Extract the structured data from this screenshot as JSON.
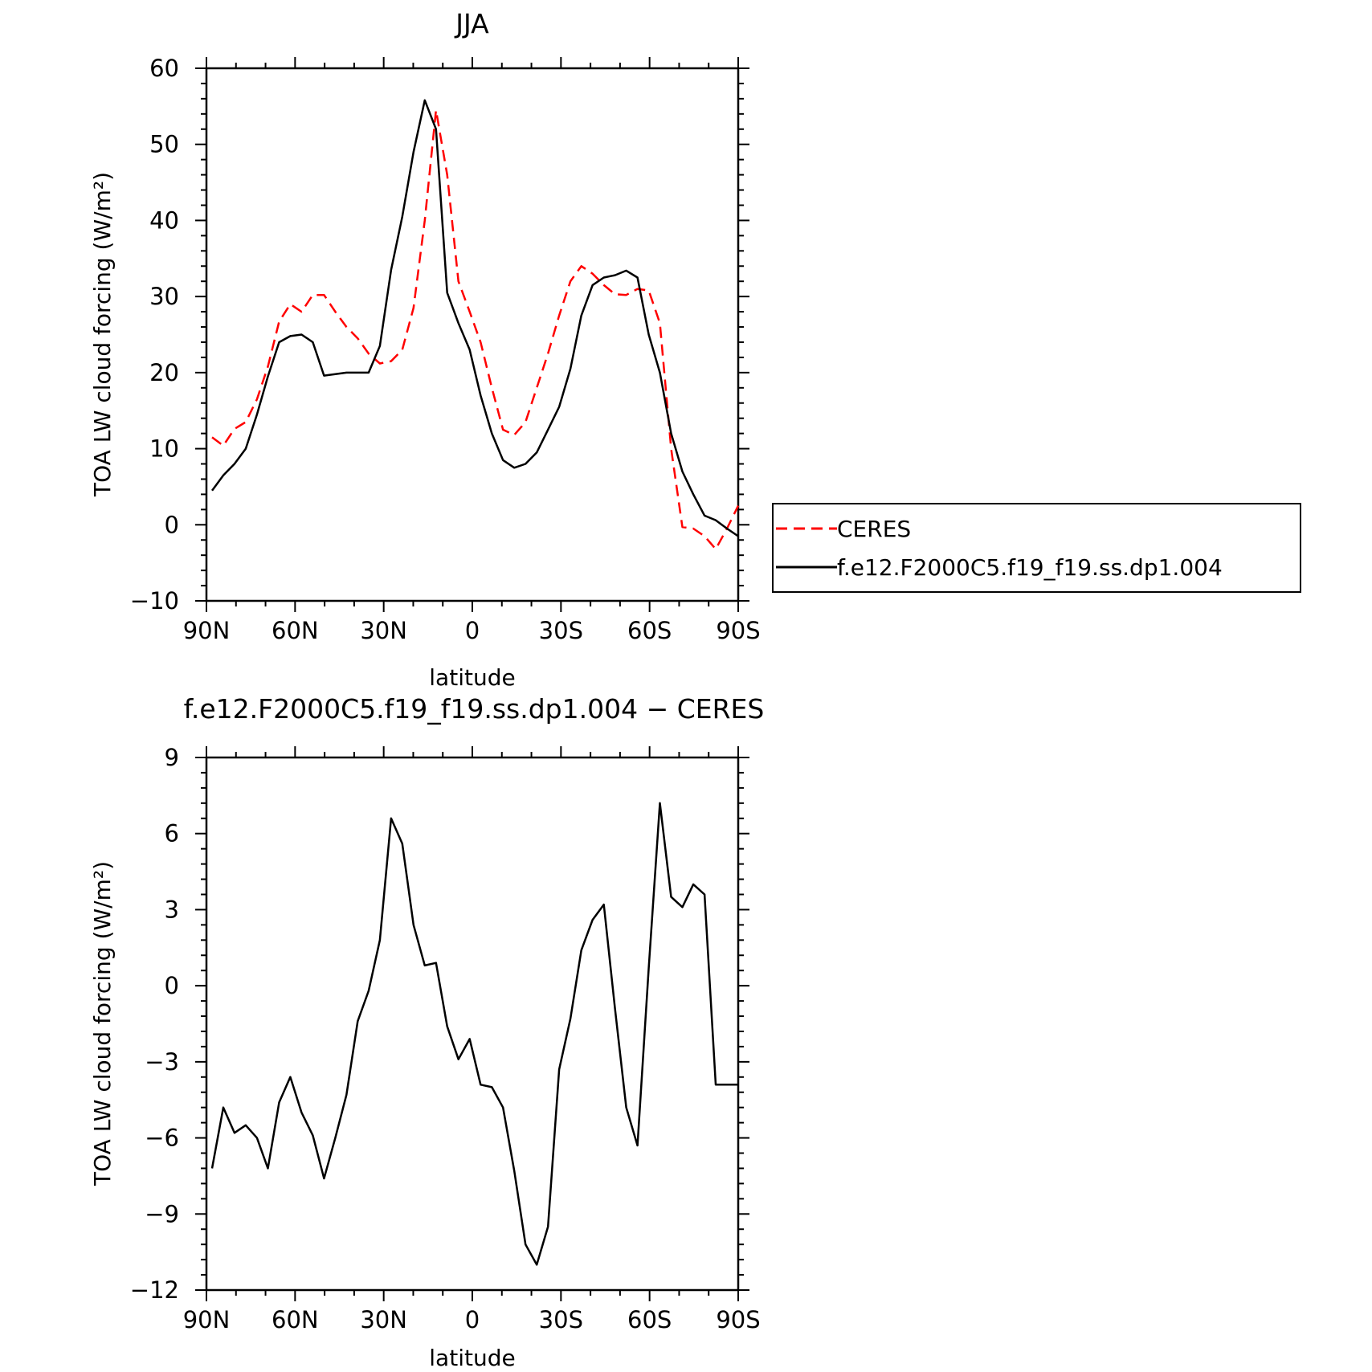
{
  "chart_data": [
    {
      "type": "line",
      "title": "JJA",
      "xlabel": "latitude",
      "ylabel": "TOA LW cloud forcing (W/m²)",
      "xlim": [
        90,
        -90
      ],
      "ylim": [
        -10,
        60
      ],
      "x_ticks": [
        90,
        60,
        30,
        0,
        -30,
        -60,
        -90
      ],
      "x_tick_labels": [
        "90N",
        "60N",
        "30N",
        "0",
        "30S",
        "60S",
        "90S"
      ],
      "y_ticks": [
        -10,
        0,
        10,
        20,
        30,
        40,
        50,
        60
      ],
      "y_tick_labels": [
        "−10",
        "0",
        "10",
        "20",
        "30",
        "40",
        "50",
        "60"
      ],
      "legend_position": "right",
      "series": [
        {
          "name": "CERES",
          "color": "#ff0000",
          "style": "dashed",
          "x": [
            88.1,
            84.3,
            80.5,
            76.7,
            72.9,
            69.2,
            65.4,
            61.6,
            57.8,
            54.0,
            50.2,
            46.4,
            42.6,
            38.8,
            35.1,
            31.3,
            27.5,
            23.7,
            19.9,
            16.1,
            12.3,
            8.5,
            4.7,
            0.9,
            -2.8,
            -6.6,
            -10.4,
            -14.2,
            -18.0,
            -21.8,
            -25.6,
            -29.4,
            -33.2,
            -36.9,
            -40.7,
            -44.5,
            -48.3,
            -52.1,
            -55.9,
            -59.7,
            -63.5,
            -67.3,
            -71.1,
            -74.8,
            -78.6,
            -82.4,
            -86.2,
            -90.0
          ],
          "y": [
            11.5,
            10.4,
            12.6,
            13.5,
            16.5,
            20.8,
            26.7,
            29.0,
            28.0,
            30.2,
            30.2,
            28.0,
            26.0,
            24.5,
            22.5,
            21.2,
            21.5,
            23.0,
            28.5,
            40.0,
            54.5,
            46.0,
            32.0,
            28.0,
            24.0,
            18.0,
            12.5,
            11.8,
            13.5,
            18.0,
            22.5,
            27.5,
            32.0,
            34.0,
            33.0,
            31.5,
            30.3,
            30.2,
            31.0,
            30.8,
            26.5,
            10.0,
            -0.3,
            -0.5,
            -1.5,
            -3.2,
            -0.5,
            2.5
          ]
        },
        {
          "name": "f.e12.F2000C5.f19_f19.ss.dp1.004",
          "color": "#000000",
          "style": "solid",
          "x": [
            88.1,
            84.3,
            80.5,
            76.7,
            72.9,
            69.2,
            65.4,
            61.6,
            57.8,
            54.0,
            50.2,
            46.4,
            42.6,
            38.8,
            35.1,
            31.3,
            27.5,
            23.7,
            19.9,
            16.1,
            12.3,
            8.5,
            4.7,
            0.9,
            -2.8,
            -6.6,
            -10.4,
            -14.2,
            -18.0,
            -21.8,
            -25.6,
            -29.4,
            -33.2,
            -36.9,
            -40.7,
            -44.5,
            -48.3,
            -52.1,
            -55.9,
            -59.7,
            -63.5,
            -67.3,
            -71.1,
            -74.8,
            -78.6,
            -82.4,
            -86.2,
            -90.0
          ],
          "y": [
            4.5,
            6.5,
            8.0,
            10.0,
            14.5,
            19.5,
            24.0,
            24.8,
            25.0,
            24.0,
            19.6,
            19.8,
            20.0,
            20.0,
            20.0,
            23.5,
            33.5,
            40.5,
            49.0,
            55.8,
            52.0,
            30.5,
            26.5,
            23.0,
            17.0,
            12.0,
            8.5,
            7.5,
            8.0,
            9.5,
            12.5,
            15.5,
            20.5,
            27.5,
            31.5,
            32.5,
            32.8,
            33.4,
            32.5,
            25.0,
            20.0,
            12.0,
            7.0,
            4.0,
            1.2,
            0.6,
            -0.5,
            -1.5
          ]
        }
      ]
    },
    {
      "type": "line",
      "title": "f.e12.F2000C5.f19_f19.ss.dp1.004 − CERES",
      "xlabel": "latitude",
      "ylabel": "TOA LW cloud forcing (W/m²)",
      "xlim": [
        90,
        -90
      ],
      "ylim": [
        -12,
        9
      ],
      "x_ticks": [
        90,
        60,
        30,
        0,
        -30,
        -60,
        -90
      ],
      "x_tick_labels": [
        "90N",
        "60N",
        "30N",
        "0",
        "30S",
        "60S",
        "90S"
      ],
      "y_ticks": [
        -12,
        -9,
        -6,
        -3,
        0,
        3,
        6,
        9
      ],
      "y_tick_labels": [
        "−12",
        "−9",
        "−6",
        "−3",
        "0",
        "3",
        "6",
        "9"
      ],
      "series": [
        {
          "color": "#000000",
          "style": "solid",
          "x": [
            88.1,
            84.3,
            80.5,
            76.7,
            72.9,
            69.2,
            65.4,
            61.6,
            57.8,
            54.0,
            50.2,
            46.4,
            42.6,
            38.8,
            35.1,
            31.3,
            27.5,
            23.7,
            19.9,
            16.1,
            12.3,
            8.5,
            4.7,
            0.9,
            -2.8,
            -6.6,
            -10.4,
            -14.2,
            -18.0,
            -21.8,
            -25.6,
            -29.4,
            -33.2,
            -36.9,
            -40.7,
            -44.5,
            -48.3,
            -52.1,
            -55.9,
            -59.7,
            -63.5,
            -67.3,
            -71.1,
            -74.8,
            -78.6,
            -82.4,
            -86.2,
            -90.0
          ],
          "y": [
            -7.2,
            -4.8,
            -5.8,
            -5.5,
            -6.0,
            -7.2,
            -4.6,
            -3.6,
            -5.0,
            -5.9,
            -7.6,
            -6.0,
            -4.3,
            -1.4,
            -0.2,
            1.8,
            6.6,
            5.6,
            2.4,
            0.8,
            0.9,
            -1.6,
            -2.9,
            -2.1,
            -3.9,
            -4.0,
            -4.8,
            -7.3,
            -10.2,
            -11.0,
            -9.5,
            -3.3,
            -1.3,
            1.4,
            2.6,
            3.2,
            -0.9,
            -4.8,
            -6.3,
            0.7,
            7.2,
            3.5,
            3.1,
            4.0,
            3.6,
            -3.9,
            -3.9,
            -3.9
          ]
        }
      ]
    }
  ]
}
